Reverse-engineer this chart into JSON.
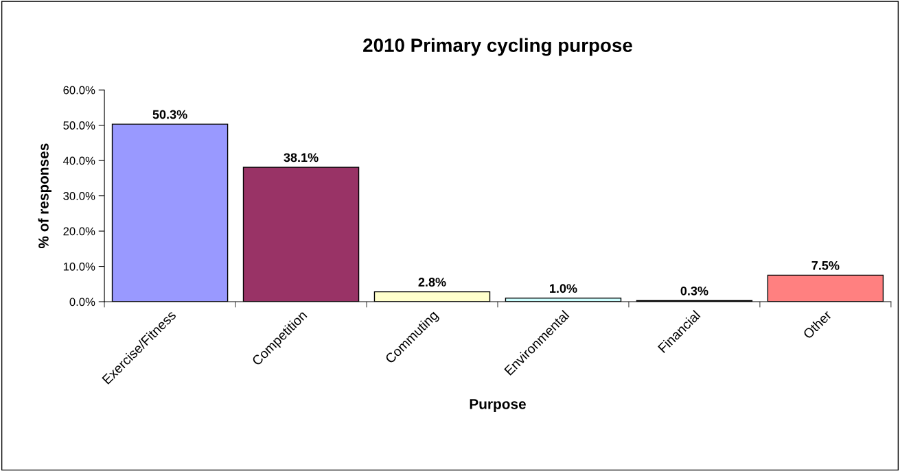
{
  "chart_data": {
    "type": "bar",
    "title": "2010 Primary cycling purpose",
    "xlabel": "Purpose",
    "ylabel": "% of responses",
    "categories": [
      "Exercise/Fitness",
      "Competition",
      "Commuting",
      "Environmental",
      "Financial",
      "Other"
    ],
    "values": [
      50.3,
      38.1,
      2.8,
      1.0,
      0.3,
      7.5
    ],
    "colors": [
      "#9999ff",
      "#993366",
      "#ffffcc",
      "#ccffff",
      "#660066",
      "#ff8080"
    ],
    "value_labels": [
      "50.3%",
      "38.1%",
      "2.8%",
      "1.0%",
      "0.3%",
      "7.5%"
    ],
    "ylim": [
      0,
      60
    ],
    "yticks": [
      {
        "value": 0,
        "label": "0.0%"
      },
      {
        "value": 10,
        "label": "10.0%"
      },
      {
        "value": 20,
        "label": "20.0%"
      },
      {
        "value": 30,
        "label": "30.0%"
      },
      {
        "value": 40,
        "label": "40.0%"
      },
      {
        "value": 50,
        "label": "50.0%"
      },
      {
        "value": 60,
        "label": "60.0%"
      }
    ],
    "grid": false,
    "legend": false
  }
}
